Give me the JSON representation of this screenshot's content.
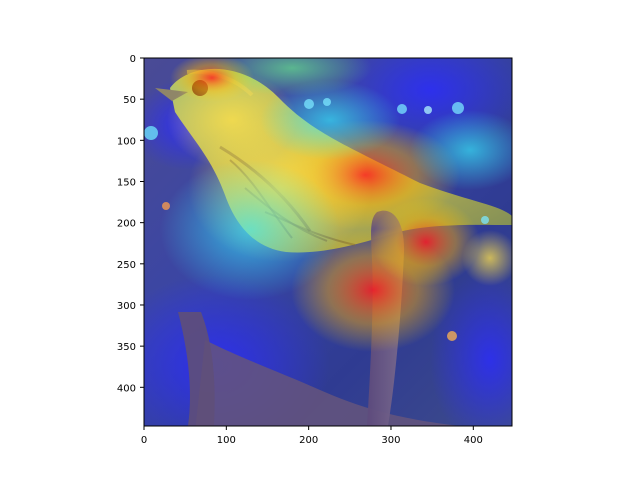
{
  "figure": {
    "background": "#ffffff",
    "axis_color": "#000000"
  },
  "image": {
    "description_type": "natural-image with heatmap overlay",
    "subject": "bird on branch",
    "colormap": "jet",
    "overlay_alpha": 0.55
  },
  "axes": {
    "x_ticks": [
      0,
      100,
      200,
      300,
      400
    ],
    "y_ticks": [
      0,
      50,
      100,
      150,
      200,
      250,
      300,
      350,
      400
    ],
    "xlim": [
      0,
      447
    ],
    "ylim": [
      447,
      0
    ]
  },
  "labels": {
    "x_ticks": [
      "0",
      "100",
      "200",
      "300",
      "400"
    ],
    "y_ticks": [
      "0",
      "50",
      "100",
      "150",
      "200",
      "250",
      "300",
      "350",
      "400"
    ]
  }
}
